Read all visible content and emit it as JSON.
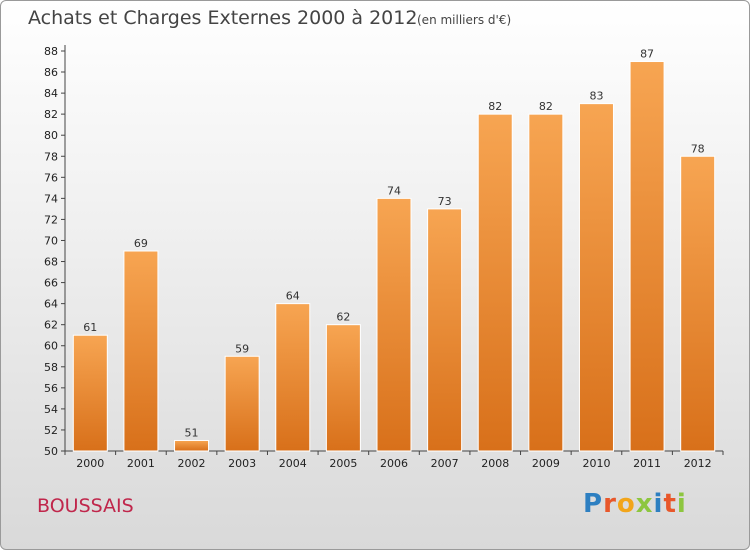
{
  "chart_data": {
    "type": "bar",
    "title": "Achats et Charges Externes 2000 à 2012",
    "unit_note": "(en milliers d'€)",
    "categories": [
      "2000",
      "2001",
      "2002",
      "2003",
      "2004",
      "2005",
      "2006",
      "2007",
      "2008",
      "2009",
      "2010",
      "2011",
      "2012"
    ],
    "series": [
      {
        "values": [
          61,
          69,
          51,
          59,
          64,
          62,
          74,
          73,
          82,
          82,
          83,
          87,
          78
        ]
      }
    ],
    "value_labels": [
      "61",
      "69",
      "51",
      "59",
      "64",
      "62",
      "74",
      "73",
      "82",
      "82",
      "83",
      "87",
      "78"
    ],
    "ylim": [
      50,
      88
    ],
    "yticks": [
      "50",
      "52",
      "54",
      "56",
      "58",
      "60",
      "62",
      "64",
      "66",
      "68",
      "70",
      "72",
      "74",
      "76",
      "78",
      "80",
      "82",
      "84",
      "86",
      "88"
    ],
    "grid": false,
    "bar_color": "#f0953a"
  },
  "footer": {
    "commune": "BOUSSAIS",
    "logo_letters": [
      "P",
      "r",
      "o",
      "x",
      "i",
      "t",
      "i"
    ]
  },
  "colors": {
    "commune_text": "#c0264b",
    "logo": [
      "#2d7fc1",
      "#e8572a",
      "#f2a51a",
      "#8dc63f",
      "#2d7fc1",
      "#e8572a",
      "#8dc63f"
    ]
  }
}
